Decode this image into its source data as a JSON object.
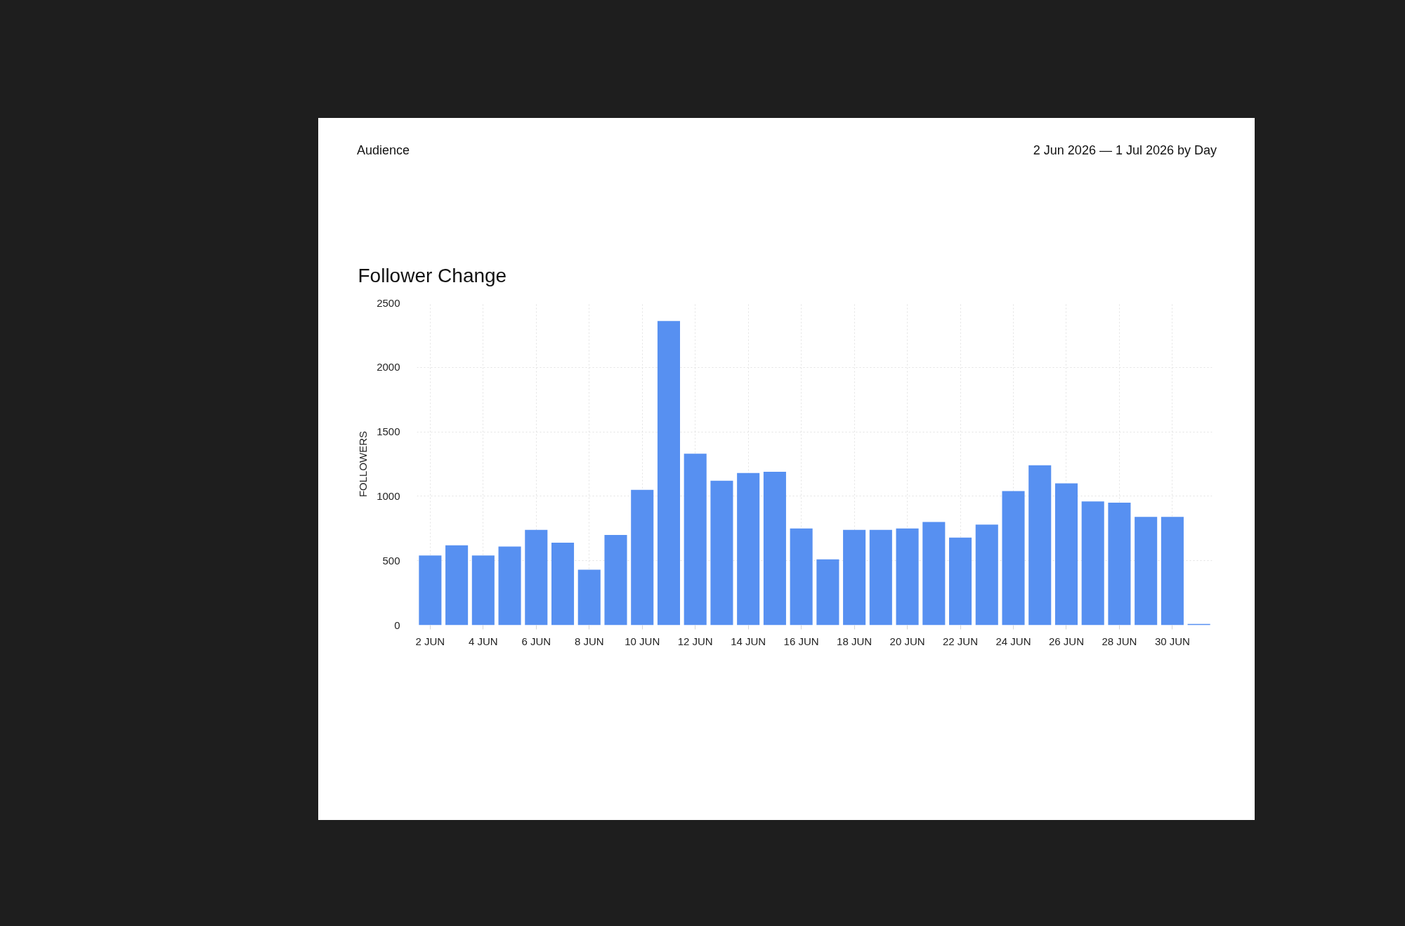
{
  "chart_data": {
    "type": "bar",
    "title": "Follower Change",
    "ylabel": "FOLLOWERS",
    "annotations": [
      "Audience",
      "2 Jun 2026 — 1 Jul 2026 by Day"
    ],
    "categories": [
      "2 JUN",
      null,
      "4 JUN",
      null,
      "6 JUN",
      null,
      "8 JUN",
      null,
      "10 JUN",
      null,
      "12 JUN",
      null,
      "14 JUN",
      null,
      "16 JUN",
      null,
      "18 JUN",
      null,
      "20 JUN",
      null,
      "22 JUN",
      null,
      "24 JUN",
      null,
      "26 JUN",
      null,
      "28 JUN",
      null,
      "30 JUN",
      null
    ],
    "values": [
      540,
      620,
      540,
      610,
      740,
      640,
      430,
      700,
      1050,
      2360,
      1330,
      1120,
      1180,
      1190,
      750,
      510,
      740,
      740,
      750,
      800,
      680,
      780,
      1040,
      1240,
      1100,
      960,
      950,
      840,
      840,
      10
    ],
    "color": "#5790f1",
    "ylim": [
      0,
      2500
    ],
    "yticks": [
      0,
      500,
      1000,
      1500,
      2000,
      2500
    ],
    "grid": true
  }
}
